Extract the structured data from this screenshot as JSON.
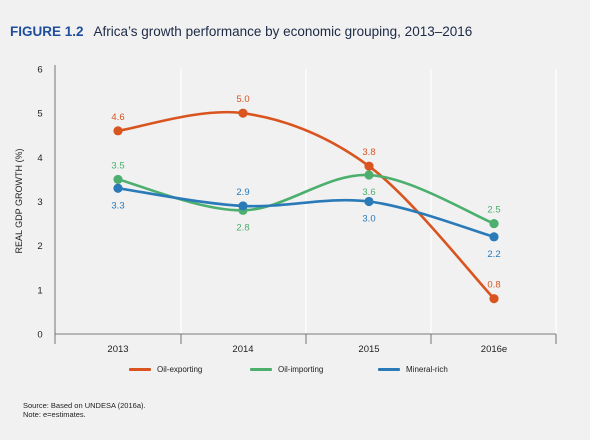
{
  "figure": {
    "number": "FIGURE 1.2",
    "title": "Africa’s growth performance by economic grouping, 2013–2016"
  },
  "notes": {
    "source": "Source: Based on UNDESA (2016a).",
    "note": "Note: e=estimates."
  },
  "chart_data": {
    "type": "line",
    "title": "Africa’s growth performance by economic grouping, 2013–2016",
    "xlabel": "",
    "ylabel": "REAL GDP GROWTH (%)",
    "categories": [
      "2013",
      "2014",
      "2015",
      "2016e"
    ],
    "ylim": [
      0,
      6
    ],
    "yticks": [
      0,
      1,
      2,
      3,
      4,
      5,
      6
    ],
    "grid": "vertical",
    "legend_position": "bottom",
    "series": [
      {
        "name": "Oil-exporting",
        "color": "#d9541e",
        "values": [
          4.6,
          5.0,
          3.8,
          0.8
        ],
        "labels": [
          "4.6",
          "5.0",
          "3.8",
          "0.8"
        ],
        "label_pos": [
          "above",
          "above",
          "above",
          "above"
        ]
      },
      {
        "name": "Oil-importing",
        "color": "#4caf6e",
        "values": [
          3.5,
          2.8,
          3.6,
          2.5
        ],
        "labels": [
          "3.5",
          "2.8",
          "3.6",
          "2.5"
        ],
        "label_pos": [
          "above",
          "below",
          "below",
          "above"
        ]
      },
      {
        "name": "Mineral-rich",
        "color": "#2a7ab8",
        "values": [
          3.3,
          2.9,
          3.0,
          2.2
        ],
        "labels": [
          "3.3",
          "2.9",
          "3.0",
          "2.2"
        ],
        "label_pos": [
          "below",
          "above",
          "below",
          "below"
        ]
      }
    ]
  }
}
